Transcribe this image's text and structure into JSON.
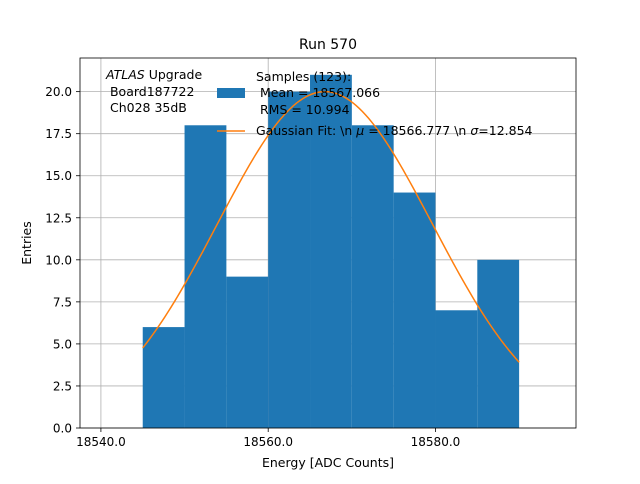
{
  "chart_data": {
    "type": "bar",
    "title": "Run 570",
    "xlabel": "Energy [ADC Counts]",
    "ylabel": "Entries",
    "xlim": [
      18537.5,
      18596.8
    ],
    "ylim": [
      0,
      22
    ],
    "xticks": [
      18540,
      18560,
      18580
    ],
    "xtick_labels": [
      "18540.0",
      "18560.0",
      "18580.0"
    ],
    "yticks": [
      0,
      2.5,
      5,
      7.5,
      10,
      12.5,
      15,
      17.5,
      20
    ],
    "ytick_labels": [
      "0.0",
      "2.5",
      "5.0",
      "7.5",
      "10.0",
      "12.5",
      "15.0",
      "17.5",
      "20.0"
    ],
    "grid": true,
    "annotation": {
      "italic": "ATLAS",
      "rest": " Upgrade",
      "line2": " Board187722",
      "line3": " Ch028 35dB"
    },
    "histogram": {
      "name": "Samples (123):\n Mean = 18567.066\n RMS = 10.994",
      "color": "#1f77b4",
      "bin_edges": [
        18545,
        18550,
        18555,
        18560,
        18565,
        18570,
        18575,
        18580,
        18585,
        18590
      ],
      "counts": [
        6,
        18,
        9,
        20,
        21,
        18,
        14,
        7,
        10
      ]
    },
    "fit": {
      "name": "Gaussian Fit: \\n μ = 18566.777 \\n σ=12.854",
      "color": "#ff7f0e",
      "mu": 18566.777,
      "sigma": 12.854,
      "amplitude": 20,
      "x_range": [
        18545,
        18590
      ]
    },
    "legend": {
      "placement": "top-right",
      "hist_lines": [
        "Samples (123):",
        " Mean = 18567.066",
        " RMS = 10.994"
      ],
      "fit_label_parts": [
        "Gaussian Fit: \\n ",
        "μ",
        " = 18566.777 \\n ",
        "σ",
        "=12.854"
      ]
    }
  }
}
